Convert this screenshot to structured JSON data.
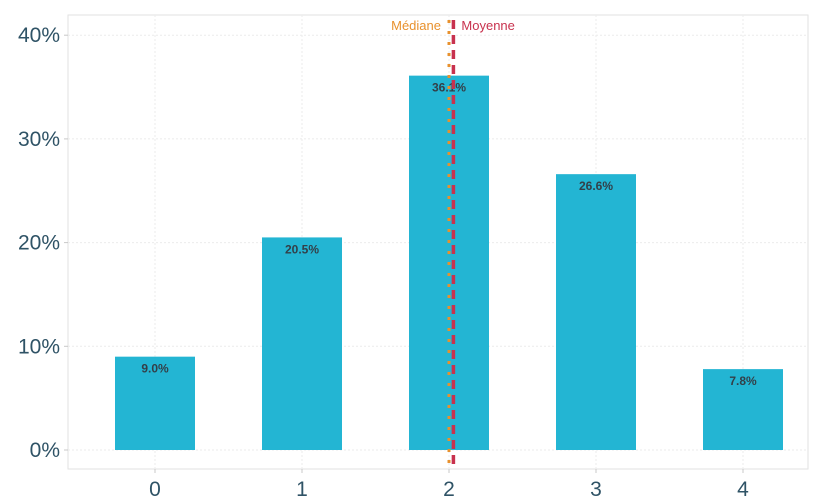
{
  "chart_data": {
    "type": "bar",
    "categories": [
      "0",
      "1",
      "2",
      "3",
      "4"
    ],
    "values": [
      9.0,
      20.5,
      36.1,
      26.6,
      7.8
    ],
    "value_labels": [
      "9.0%",
      "20.5%",
      "36.1%",
      "26.6%",
      "7.8%"
    ],
    "y_ticks": [
      0,
      10,
      20,
      30,
      40
    ],
    "y_tick_labels": [
      "0%",
      "10%",
      "20%",
      "30%",
      "40%"
    ],
    "ylim": [
      0,
      42
    ],
    "xlim": [
      -0.6,
      4.5
    ],
    "grid": true,
    "bar_color": "#23b5d3",
    "reference_lines": [
      {
        "label": "Médiane",
        "x": 2.0,
        "color": "#e8912d",
        "style": "dotted"
      },
      {
        "label": "Moyenne",
        "x": 2.03,
        "color": "#c8324e",
        "style": "dashed"
      }
    ]
  }
}
